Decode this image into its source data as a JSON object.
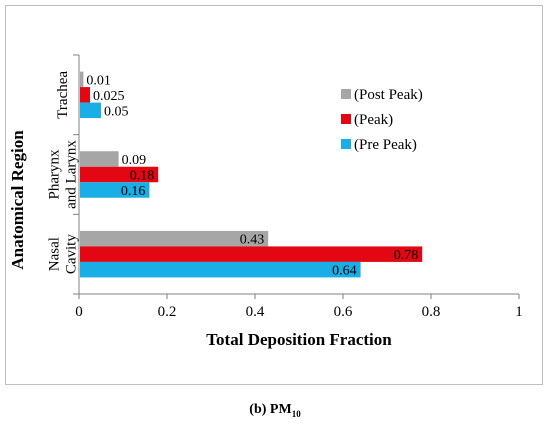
{
  "chart_data": {
    "type": "bar",
    "orientation": "horizontal",
    "xlabel": "Total Deposition Fraction",
    "ylabel": "Anatomical Region",
    "xlim": [
      0,
      1
    ],
    "xticks": [
      "0",
      "0.2",
      "0.4",
      "0.6",
      "0.8",
      "1"
    ],
    "categories": [
      {
        "lines": [
          "Trachea"
        ]
      },
      {
        "lines": [
          "Pharynx",
          "and Larynx"
        ]
      },
      {
        "lines": [
          "Nasal",
          "Cavity"
        ]
      }
    ],
    "series": [
      {
        "name": "(Post Peak)",
        "color": "#a6a6a6",
        "values": [
          0.01,
          0.09,
          0.43
        ],
        "labels": [
          "0.01",
          "0.09",
          "0.43"
        ]
      },
      {
        "name": "(Peak)",
        "color": "#e30613",
        "values": [
          0.025,
          0.18,
          0.78
        ],
        "labels": [
          "0.025",
          "0.18",
          "0.78"
        ]
      },
      {
        "name": "(Pre Peak)",
        "color": "#1aaee6",
        "values": [
          0.05,
          0.16,
          0.64
        ],
        "labels": [
          "0.05",
          "0.16",
          "0.64"
        ]
      }
    ],
    "grid": false,
    "legend_position": "top-right"
  },
  "caption": {
    "prefix": "(",
    "letter": "b",
    "suffix": ") PM",
    "subscript": "10"
  }
}
